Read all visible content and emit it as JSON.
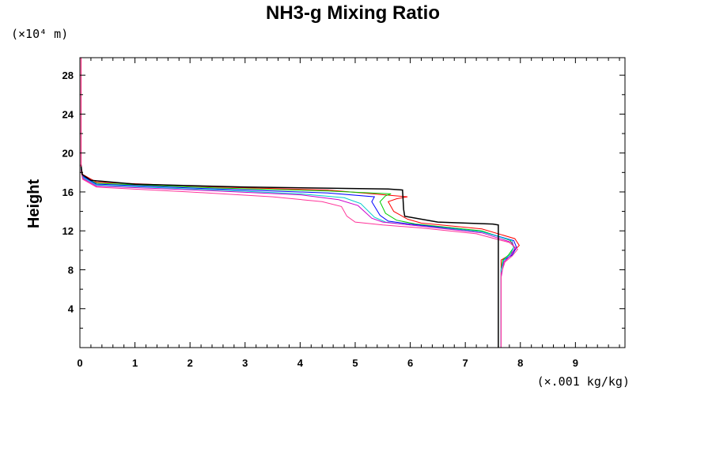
{
  "chart_data": {
    "type": "line",
    "title": "NH3-g Mixing Ratio",
    "ylabel": "Height",
    "xlabel": "",
    "y_unit": "(×10⁴ m)",
    "x_unit": "(×.001 kg/kg)",
    "xlim": [
      0,
      9.9
    ],
    "ylim": [
      0,
      29.8
    ],
    "x_ticks": [
      "0",
      "1",
      "2",
      "3",
      "4",
      "5",
      "6",
      "7",
      "8",
      "9"
    ],
    "y_ticks": [
      "4",
      "8",
      "12",
      "16",
      "20",
      "24",
      "28"
    ],
    "grid": false,
    "series": [
      {
        "color": "#ff0000",
        "x": [
          7.65,
          7.65,
          7.65,
          7.8,
          7.98,
          7.9,
          7.3,
          6.2,
          5.95,
          5.7,
          5.6,
          5.75,
          5.95,
          4.5,
          2.5,
          0.3,
          0.05,
          0.02
        ],
        "y": [
          0,
          7.5,
          9.0,
          9.5,
          10.5,
          11.2,
          12.2,
          12.8,
          13.2,
          14.0,
          15.0,
          15.3,
          15.5,
          16.2,
          16.5,
          17.0,
          17.8,
          18.6
        ]
      },
      {
        "color": "#00cc00",
        "x": [
          7.65,
          7.65,
          7.68,
          7.78,
          7.88,
          7.82,
          7.3,
          6.1,
          5.75,
          5.55,
          5.45,
          5.55,
          5.65,
          4.5,
          2.5,
          0.3,
          0.05,
          0.02
        ],
        "y": [
          0,
          8.0,
          9.0,
          9.5,
          10.3,
          11.0,
          12.0,
          12.7,
          13.1,
          13.8,
          15.0,
          15.6,
          15.8,
          16.1,
          16.4,
          16.9,
          17.6,
          18.5
        ]
      },
      {
        "color": "#0000ff",
        "x": [
          7.65,
          7.65,
          7.7,
          7.85,
          7.93,
          7.88,
          7.3,
          6.0,
          5.6,
          5.45,
          5.3,
          5.35,
          4.5,
          2.5,
          0.3,
          0.05,
          0.02
        ],
        "y": [
          0,
          8.0,
          9.0,
          9.5,
          10.3,
          11.0,
          11.9,
          12.7,
          13.0,
          13.6,
          15.0,
          15.5,
          15.9,
          16.3,
          16.8,
          17.6,
          18.5
        ]
      },
      {
        "color": "#00cccc",
        "x": [
          7.65,
          7.65,
          7.7,
          7.82,
          7.88,
          7.85,
          7.3,
          6.0,
          5.55,
          5.35,
          5.1,
          4.8,
          4.0,
          2.5,
          0.3,
          0.05,
          0.02
        ],
        "y": [
          0,
          8.0,
          9.0,
          9.6,
          10.3,
          11.0,
          11.9,
          12.6,
          12.9,
          13.4,
          14.8,
          15.4,
          15.8,
          16.2,
          16.7,
          17.5,
          18.4
        ]
      },
      {
        "color": "#cc00cc",
        "x": [
          7.65,
          7.65,
          7.7,
          7.83,
          7.9,
          7.85,
          7.3,
          6.0,
          5.5,
          5.3,
          5.05,
          4.7,
          4.0,
          2.5,
          0.3,
          0.05,
          0.02
        ],
        "y": [
          0,
          7.2,
          8.8,
          9.5,
          10.2,
          10.8,
          11.8,
          12.6,
          12.9,
          13.3,
          14.6,
          15.2,
          15.7,
          16.1,
          16.6,
          17.4,
          18.3
        ]
      },
      {
        "color": "#ff3399",
        "x": [
          7.65,
          7.65,
          7.72,
          7.85,
          7.95,
          7.8,
          7.2,
          6.2,
          5.5,
          5.0,
          4.85,
          4.75,
          4.4,
          3.5,
          2.0,
          0.3,
          0.05,
          0.02
        ],
        "y": [
          0,
          7.6,
          8.8,
          9.4,
          10.1,
          10.8,
          11.7,
          12.3,
          12.6,
          12.9,
          13.5,
          14.5,
          15.0,
          15.5,
          16.0,
          16.5,
          17.3,
          18.2
        ]
      },
      {
        "color": "#000000",
        "x": [
          7.6,
          7.6,
          7.6,
          7.5,
          6.5,
          5.9,
          5.88,
          5.86,
          5.6,
          3.0,
          1.0,
          0.2,
          0.04,
          0.02
        ],
        "y": [
          0,
          10.5,
          12.6,
          12.7,
          12.9,
          13.5,
          14.2,
          16.2,
          16.3,
          16.5,
          16.8,
          17.2,
          17.8,
          18.8
        ]
      },
      {
        "color": "#ff0066",
        "x": [
          0.02,
          0.02
        ],
        "y": [
          18.6,
          29.8
        ]
      }
    ]
  }
}
